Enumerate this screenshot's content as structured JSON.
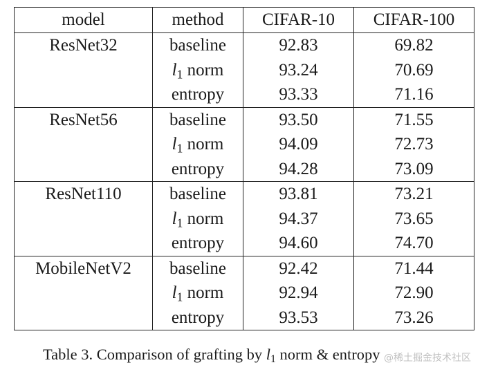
{
  "table": {
    "headers": [
      "model",
      "method",
      "CIFAR-10",
      "CIFAR-100"
    ],
    "groups": [
      {
        "model": "ResNet32",
        "rows": [
          {
            "method": "baseline",
            "cifar10": "92.83",
            "cifar100": "69.82"
          },
          {
            "method": "l1 norm",
            "cifar10": "93.24",
            "cifar100": "70.69"
          },
          {
            "method": "entropy",
            "cifar10": "93.33",
            "cifar100": "71.16"
          }
        ]
      },
      {
        "model": "ResNet56",
        "rows": [
          {
            "method": "baseline",
            "cifar10": "93.50",
            "cifar100": "71.55"
          },
          {
            "method": "l1 norm",
            "cifar10": "94.09",
            "cifar100": "72.73"
          },
          {
            "method": "entropy",
            "cifar10": "94.28",
            "cifar100": "73.09"
          }
        ]
      },
      {
        "model": "ResNet110",
        "rows": [
          {
            "method": "baseline",
            "cifar10": "93.81",
            "cifar100": "73.21"
          },
          {
            "method": "l1 norm",
            "cifar10": "94.37",
            "cifar100": "73.65"
          },
          {
            "method": "entropy",
            "cifar10": "94.60",
            "cifar100": "74.70"
          }
        ]
      },
      {
        "model": "MobileNetV2",
        "rows": [
          {
            "method": "baseline",
            "cifar10": "92.42",
            "cifar100": "71.44"
          },
          {
            "method": "l1 norm",
            "cifar10": "92.94",
            "cifar100": "72.90"
          },
          {
            "method": "entropy",
            "cifar10": "93.53",
            "cifar100": "73.26"
          }
        ]
      }
    ],
    "bold_method": "entropy"
  },
  "caption": {
    "prefix": "Table 3. Comparison of grafting by ",
    "math_base": "l",
    "math_sub": "1",
    "suffix": " norm & entropy"
  },
  "watermark": "@稀土掘金技术社区"
}
